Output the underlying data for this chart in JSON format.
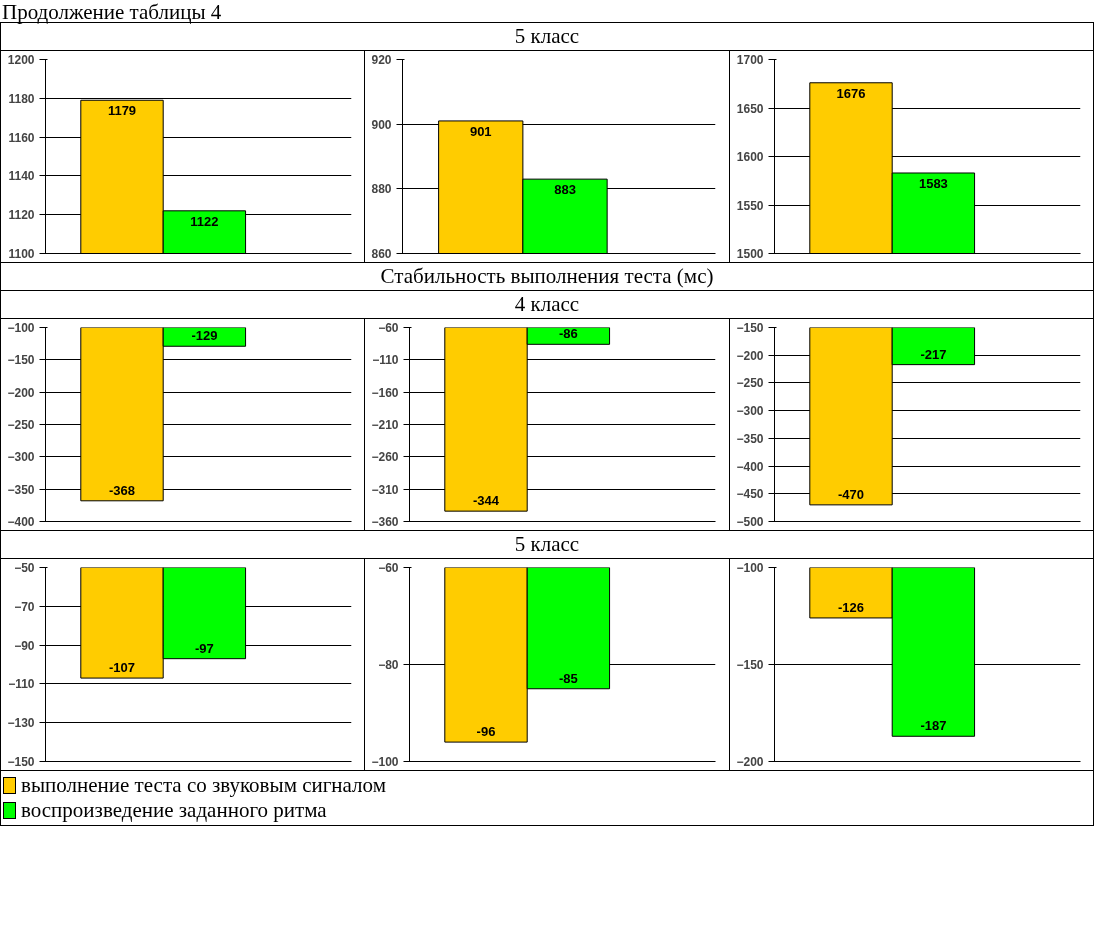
{
  "chart_data": [
    {
      "type": "bar",
      "annotations": [
        "Продолжение таблицы 4"
      ],
      "categories": [
        null
      ],
      "series": [
        {
          "name": "выполнение теста со звуковым сигналом",
          "color": "#ffcc00",
          "values": [
            1179
          ]
        },
        {
          "name": "воспроизведение заданного ритма",
          "color": "#00ff00",
          "values": [
            1122
          ]
        }
      ],
      "ylim": [
        1100,
        1200
      ],
      "yticks": [
        1100,
        1120,
        1140,
        1160,
        1180,
        1200
      ],
      "grid": "y",
      "tick_labels": "y",
      "data_labels": true,
      "legend": "bottom"
    },
    {
      "type": "bar",
      "title": "5 класс",
      "categories": [
        null
      ],
      "series": [
        {
          "color": "#ffcc00",
          "values": [
            901
          ]
        },
        {
          "color": "#00ff00",
          "values": [
            883
          ]
        }
      ],
      "ylim": [
        860,
        920
      ],
      "yticks": [
        860,
        880,
        900,
        920
      ],
      "grid": "y",
      "tick_labels": "y",
      "data_labels": true
    },
    {
      "type": "bar",
      "categories": [
        null
      ],
      "series": [
        {
          "color": "#ffcc00",
          "values": [
            1676
          ]
        },
        {
          "color": "#00ff00",
          "values": [
            1583
          ]
        }
      ],
      "ylim": [
        1500,
        1700
      ],
      "yticks": [
        1500,
        1550,
        1600,
        1650,
        1700
      ],
      "grid": "y",
      "tick_labels": "y",
      "data_labels": true
    },
    {
      "type": "bar",
      "categories": [
        null
      ],
      "series": [
        {
          "color": "#ffcc00",
          "values": [
            -368
          ]
        },
        {
          "color": "#00ff00",
          "values": [
            -129
          ]
        }
      ],
      "ylim": [
        -400,
        -100
      ],
      "yticks": [
        -400,
        -350,
        -300,
        -250,
        -200,
        -150,
        -100
      ],
      "grid": "y",
      "tick_labels": "y",
      "data_labels": true
    },
    {
      "type": "bar",
      "subtitle": "Стабильность выполнения теста (мс)",
      "title": "4 класс",
      "categories": [
        null
      ],
      "series": [
        {
          "color": "#ffcc00",
          "values": [
            -344
          ]
        },
        {
          "color": "#00ff00",
          "values": [
            -86
          ]
        }
      ],
      "ylim": [
        -360,
        -60
      ],
      "yticks": [
        -360,
        -310,
        -260,
        -210,
        -160,
        -110,
        -60
      ],
      "grid": "y",
      "tick_labels": "y",
      "data_labels": true
    },
    {
      "type": "bar",
      "categories": [
        null
      ],
      "series": [
        {
          "color": "#ffcc00",
          "values": [
            -470
          ]
        },
        {
          "color": "#00ff00",
          "values": [
            -217
          ]
        }
      ],
      "ylim": [
        -500,
        -150
      ],
      "yticks": [
        -500,
        -450,
        -400,
        -350,
        -300,
        -250,
        -200,
        -150
      ],
      "grid": "y",
      "tick_labels": "y",
      "data_labels": true
    },
    {
      "type": "bar",
      "categories": [
        null
      ],
      "series": [
        {
          "color": "#ffcc00",
          "values": [
            -107
          ]
        },
        {
          "color": "#00ff00",
          "values": [
            -97
          ]
        }
      ],
      "ylim": [
        -150,
        -50
      ],
      "yticks": [
        -150,
        -130,
        -110,
        -90,
        -70,
        -50
      ],
      "grid": "y",
      "tick_labels": "y",
      "data_labels": true
    },
    {
      "type": "bar",
      "title": "5 класс",
      "categories": [
        null
      ],
      "series": [
        {
          "color": "#ffcc00",
          "values": [
            -96
          ]
        },
        {
          "color": "#00ff00",
          "values": [
            -85
          ]
        }
      ],
      "ylim": [
        -100,
        -60
      ],
      "yticks": [
        -100,
        -80,
        -60
      ],
      "grid": "y",
      "tick_labels": "y",
      "data_labels": true
    },
    {
      "type": "bar",
      "categories": [
        null
      ],
      "series": [
        {
          "color": "#ffcc00",
          "values": [
            -126
          ]
        },
        {
          "color": "#00ff00",
          "values": [
            -187
          ]
        }
      ],
      "ylim": [
        -200,
        -100
      ],
      "yticks": [
        -200,
        -150,
        -100
      ],
      "grid": "y",
      "tick_labels": "y",
      "data_labels": true
    }
  ]
}
